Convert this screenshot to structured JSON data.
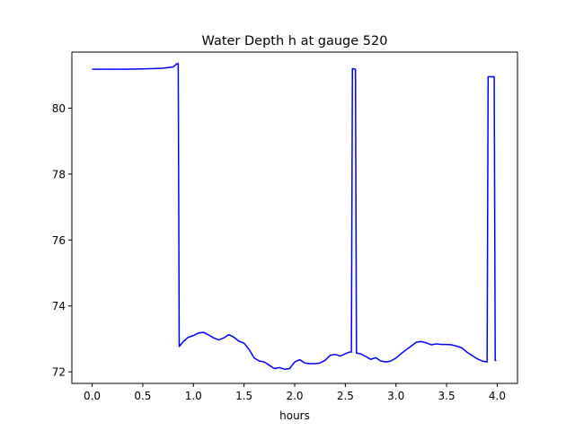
{
  "chart_data": {
    "type": "line",
    "title": "Water Depth h at gauge 520",
    "xlabel": "hours",
    "ylabel": "",
    "xlim": [
      -0.2,
      4.2
    ],
    "ylim": [
      71.65,
      81.7
    ],
    "xticks": [
      0.0,
      0.5,
      1.0,
      1.5,
      2.0,
      2.5,
      3.0,
      3.5,
      4.0
    ],
    "xtick_labels": [
      "0.0",
      "0.5",
      "1.0",
      "1.5",
      "2.0",
      "2.5",
      "3.0",
      "3.5",
      "4.0"
    ],
    "yticks": [
      72,
      74,
      76,
      78,
      80
    ],
    "ytick_labels": [
      "72",
      "74",
      "76",
      "78",
      "80"
    ],
    "grid": false,
    "series": [
      {
        "color": "#0000ff",
        "x": [
          0.0,
          0.3,
          0.5,
          0.7,
          0.8,
          0.84,
          0.85,
          0.86,
          0.9,
          0.95,
          1.0,
          1.05,
          1.1,
          1.15,
          1.2,
          1.25,
          1.3,
          1.35,
          1.4,
          1.45,
          1.5,
          1.55,
          1.6,
          1.65,
          1.7,
          1.75,
          1.8,
          1.85,
          1.9,
          1.95,
          2.0,
          2.05,
          2.1,
          2.15,
          2.2,
          2.25,
          2.3,
          2.35,
          2.4,
          2.45,
          2.5,
          2.54,
          2.56,
          2.57,
          2.6,
          2.61,
          2.65,
          2.7,
          2.75,
          2.8,
          2.85,
          2.9,
          2.95,
          3.0,
          3.05,
          3.1,
          3.15,
          3.2,
          3.25,
          3.3,
          3.35,
          3.4,
          3.45,
          3.5,
          3.55,
          3.6,
          3.65,
          3.7,
          3.75,
          3.8,
          3.85,
          3.9,
          3.91,
          3.97,
          3.98,
          3.99
        ],
        "y": [
          81.18,
          81.18,
          81.19,
          81.21,
          81.25,
          81.35,
          81.35,
          72.77,
          72.92,
          73.05,
          73.1,
          73.18,
          73.2,
          73.12,
          73.03,
          72.97,
          73.03,
          73.13,
          73.05,
          72.93,
          72.87,
          72.68,
          72.42,
          72.33,
          72.3,
          72.2,
          72.1,
          72.13,
          72.08,
          72.1,
          72.3,
          72.37,
          72.27,
          72.25,
          72.25,
          72.27,
          72.35,
          72.5,
          72.53,
          72.48,
          72.55,
          72.6,
          72.6,
          81.2,
          81.18,
          72.57,
          72.55,
          72.47,
          72.38,
          72.43,
          72.33,
          72.3,
          72.33,
          72.42,
          72.55,
          72.67,
          72.78,
          72.9,
          72.92,
          72.88,
          72.82,
          72.85,
          72.83,
          72.83,
          72.82,
          72.78,
          72.73,
          72.6,
          72.5,
          72.4,
          72.33,
          72.3,
          80.95,
          80.95,
          72.35,
          72.33
        ]
      }
    ]
  }
}
